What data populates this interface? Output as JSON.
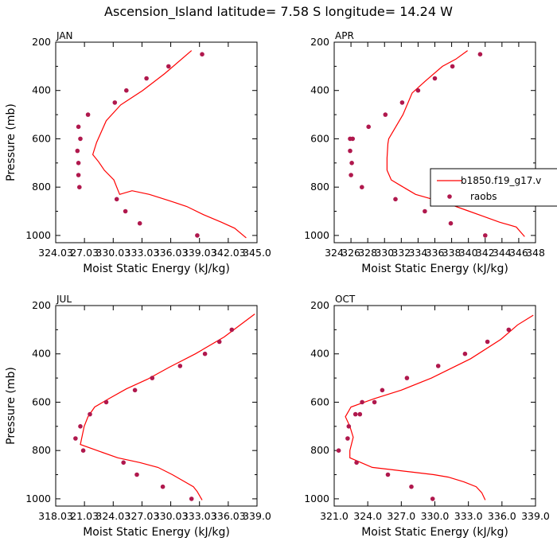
{
  "figure": {
    "title": "Ascension_Island   latitude=  7.58 S longitude=  14.24 W",
    "colors": {
      "model": "#ff0000",
      "obs": "#b0184d",
      "frame": "#000000"
    },
    "legend": {
      "model_label": "b1850.f19_g17.v",
      "obs_label": "raobs",
      "placement": "right, APR panel"
    }
  },
  "chart_data": [
    {
      "type": "line",
      "panel": "JAN",
      "xlabel": "Moist Static Energy (kJ/kg)",
      "ylabel": "Pressure (mb)",
      "xlim": [
        324.03,
        345.03
      ],
      "ylim": [
        1030,
        200
      ],
      "xticks": [
        "324.03",
        "27.03",
        "330.03",
        "333.03",
        "336.03",
        "339.03",
        "342.03",
        "345.0"
      ],
      "yticks": [
        200,
        400,
        600,
        800,
        1000
      ],
      "series": [
        {
          "name": "b1850.f19_g17.v",
          "x": [
            343.9,
            342.7,
            341.3,
            339.5,
            337.7,
            335.8,
            333.8,
            332.0,
            330.7,
            330.5,
            330.1,
            329.1,
            328.5,
            327.9,
            328.3,
            329.3,
            330.8,
            333.1,
            335.4,
            338.2
          ],
          "y": [
            1010,
            970,
            945,
            915,
            880,
            855,
            830,
            815,
            830,
            810,
            770,
            730,
            695,
            665,
            615,
            525,
            460,
            400,
            330,
            235
          ]
        },
        {
          "name": "raobs",
          "x": [
            338.8,
            332.8,
            331.3,
            330.4,
            326.5,
            326.4,
            326.4,
            326.3,
            326.6,
            326.4,
            327.4,
            330.2,
            331.4,
            333.5,
            335.8,
            339.3
          ],
          "y": [
            1000,
            950,
            900,
            850,
            800,
            750,
            700,
            650,
            600,
            550,
            500,
            450,
            400,
            350,
            300,
            250
          ]
        }
      ]
    },
    {
      "type": "line",
      "panel": "APR",
      "xlabel": "Moist Static Energy (kJ/kg)",
      "ylabel": "",
      "xlim": [
        324,
        348
      ],
      "ylim": [
        1030,
        200
      ],
      "xticks": [
        "324",
        "326",
        "328",
        "330",
        "332",
        "334",
        "336",
        "338",
        "340",
        "342",
        "344",
        "346",
        "348"
      ],
      "yticks": [
        200,
        400,
        600,
        800,
        1000
      ],
      "series": [
        {
          "name": "b1850.f19_g17.v",
          "x": [
            346.7,
            345.7,
            343.7,
            341.7,
            339.7,
            337.7,
            335.7,
            333.7,
            332.0,
            330.8,
            330.3,
            330.3,
            330.4,
            330.5,
            332.2,
            333.3,
            334.9,
            336.9,
            338.5,
            339.9
          ],
          "y": [
            1005,
            965,
            945,
            920,
            895,
            870,
            850,
            830,
            795,
            770,
            730,
            680,
            620,
            600,
            500,
            410,
            360,
            300,
            270,
            235
          ]
        },
        {
          "name": "raobs",
          "x": [
            342.0,
            337.9,
            334.8,
            331.3,
            327.3,
            326.0,
            326.1,
            325.9,
            325.9,
            326.2,
            328.1,
            330.1,
            332.1,
            334.0,
            336.0,
            338.1,
            341.4
          ],
          "y": [
            1000,
            950,
            900,
            850,
            800,
            750,
            700,
            650,
            600,
            600,
            550,
            500,
            450,
            400,
            350,
            300,
            250
          ]
        }
      ]
    },
    {
      "type": "line",
      "panel": "JUL",
      "xlabel": "Moist Static Energy (kJ/kg)",
      "ylabel": "Pressure (mb)",
      "xlim": [
        318.03,
        339.03
      ],
      "ylim": [
        1030,
        200
      ],
      "xticks": [
        "318.03",
        "21.03",
        "324.03",
        "327.03",
        "330.03",
        "333.03",
        "336.03",
        "339.0"
      ],
      "yticks": [
        200,
        400,
        600,
        800,
        1000
      ],
      "series": [
        {
          "name": "b1850.f19_g17.v",
          "x": [
            333.3,
            332.8,
            332.4,
            331.3,
            330.2,
            328.7,
            326.8,
            324.5,
            322.7,
            320.6,
            321.0,
            321.4,
            322.1,
            323.6,
            325.4,
            327.6,
            329.9,
            332.6,
            335.6,
            338.8
          ],
          "y": [
            1005,
            970,
            950,
            925,
            900,
            870,
            850,
            830,
            805,
            775,
            700,
            660,
            620,
            585,
            545,
            505,
            455,
            400,
            330,
            235
          ]
        },
        {
          "name": "raobs",
          "x": [
            332.2,
            329.2,
            326.5,
            325.1,
            320.9,
            320.1,
            320.6,
            321.6,
            323.3,
            326.3,
            328.1,
            331.0,
            333.6,
            335.1,
            336.4
          ],
          "y": [
            1000,
            950,
            900,
            850,
            800,
            750,
            700,
            650,
            600,
            550,
            500,
            450,
            400,
            350,
            300
          ]
        }
      ]
    },
    {
      "type": "line",
      "panel": "OCT",
      "xlabel": "Moist Static Energy (kJ/kg)",
      "ylabel": "",
      "xlim": [
        321.0,
        339.0
      ],
      "ylim": [
        1030,
        200
      ],
      "xticks": [
        "321.0",
        "324.0",
        "327.0",
        "330.0",
        "333.0",
        "336.0",
        "339.0"
      ],
      "yticks": [
        200,
        400,
        600,
        800,
        1000
      ],
      "series": [
        {
          "name": "b1850.f19_g17.v",
          "x": [
            334.5,
            334.2,
            333.7,
            332.6,
            331.2,
            329.9,
            328.1,
            326.3,
            324.4,
            322.4,
            322.4,
            322.7,
            322.4,
            322.0,
            322.5,
            324.6,
            327.0,
            329.7,
            333.2,
            335.9,
            337.4,
            338.8
          ],
          "y": [
            1005,
            975,
            950,
            930,
            910,
            900,
            890,
            880,
            870,
            830,
            800,
            745,
            700,
            660,
            620,
            585,
            550,
            500,
            420,
            340,
            280,
            240
          ]
        },
        {
          "name": "raobs",
          "x": [
            329.8,
            327.9,
            325.8,
            323.0,
            321.4,
            322.2,
            322.3,
            322.9,
            323.3,
            323.5,
            324.6,
            325.3,
            327.5,
            330.3,
            332.7,
            334.7,
            336.6
          ],
          "y": [
            1000,
            950,
            900,
            850,
            800,
            750,
            700,
            650,
            650,
            600,
            600,
            550,
            500,
            450,
            400,
            350,
            300
          ]
        }
      ]
    }
  ]
}
